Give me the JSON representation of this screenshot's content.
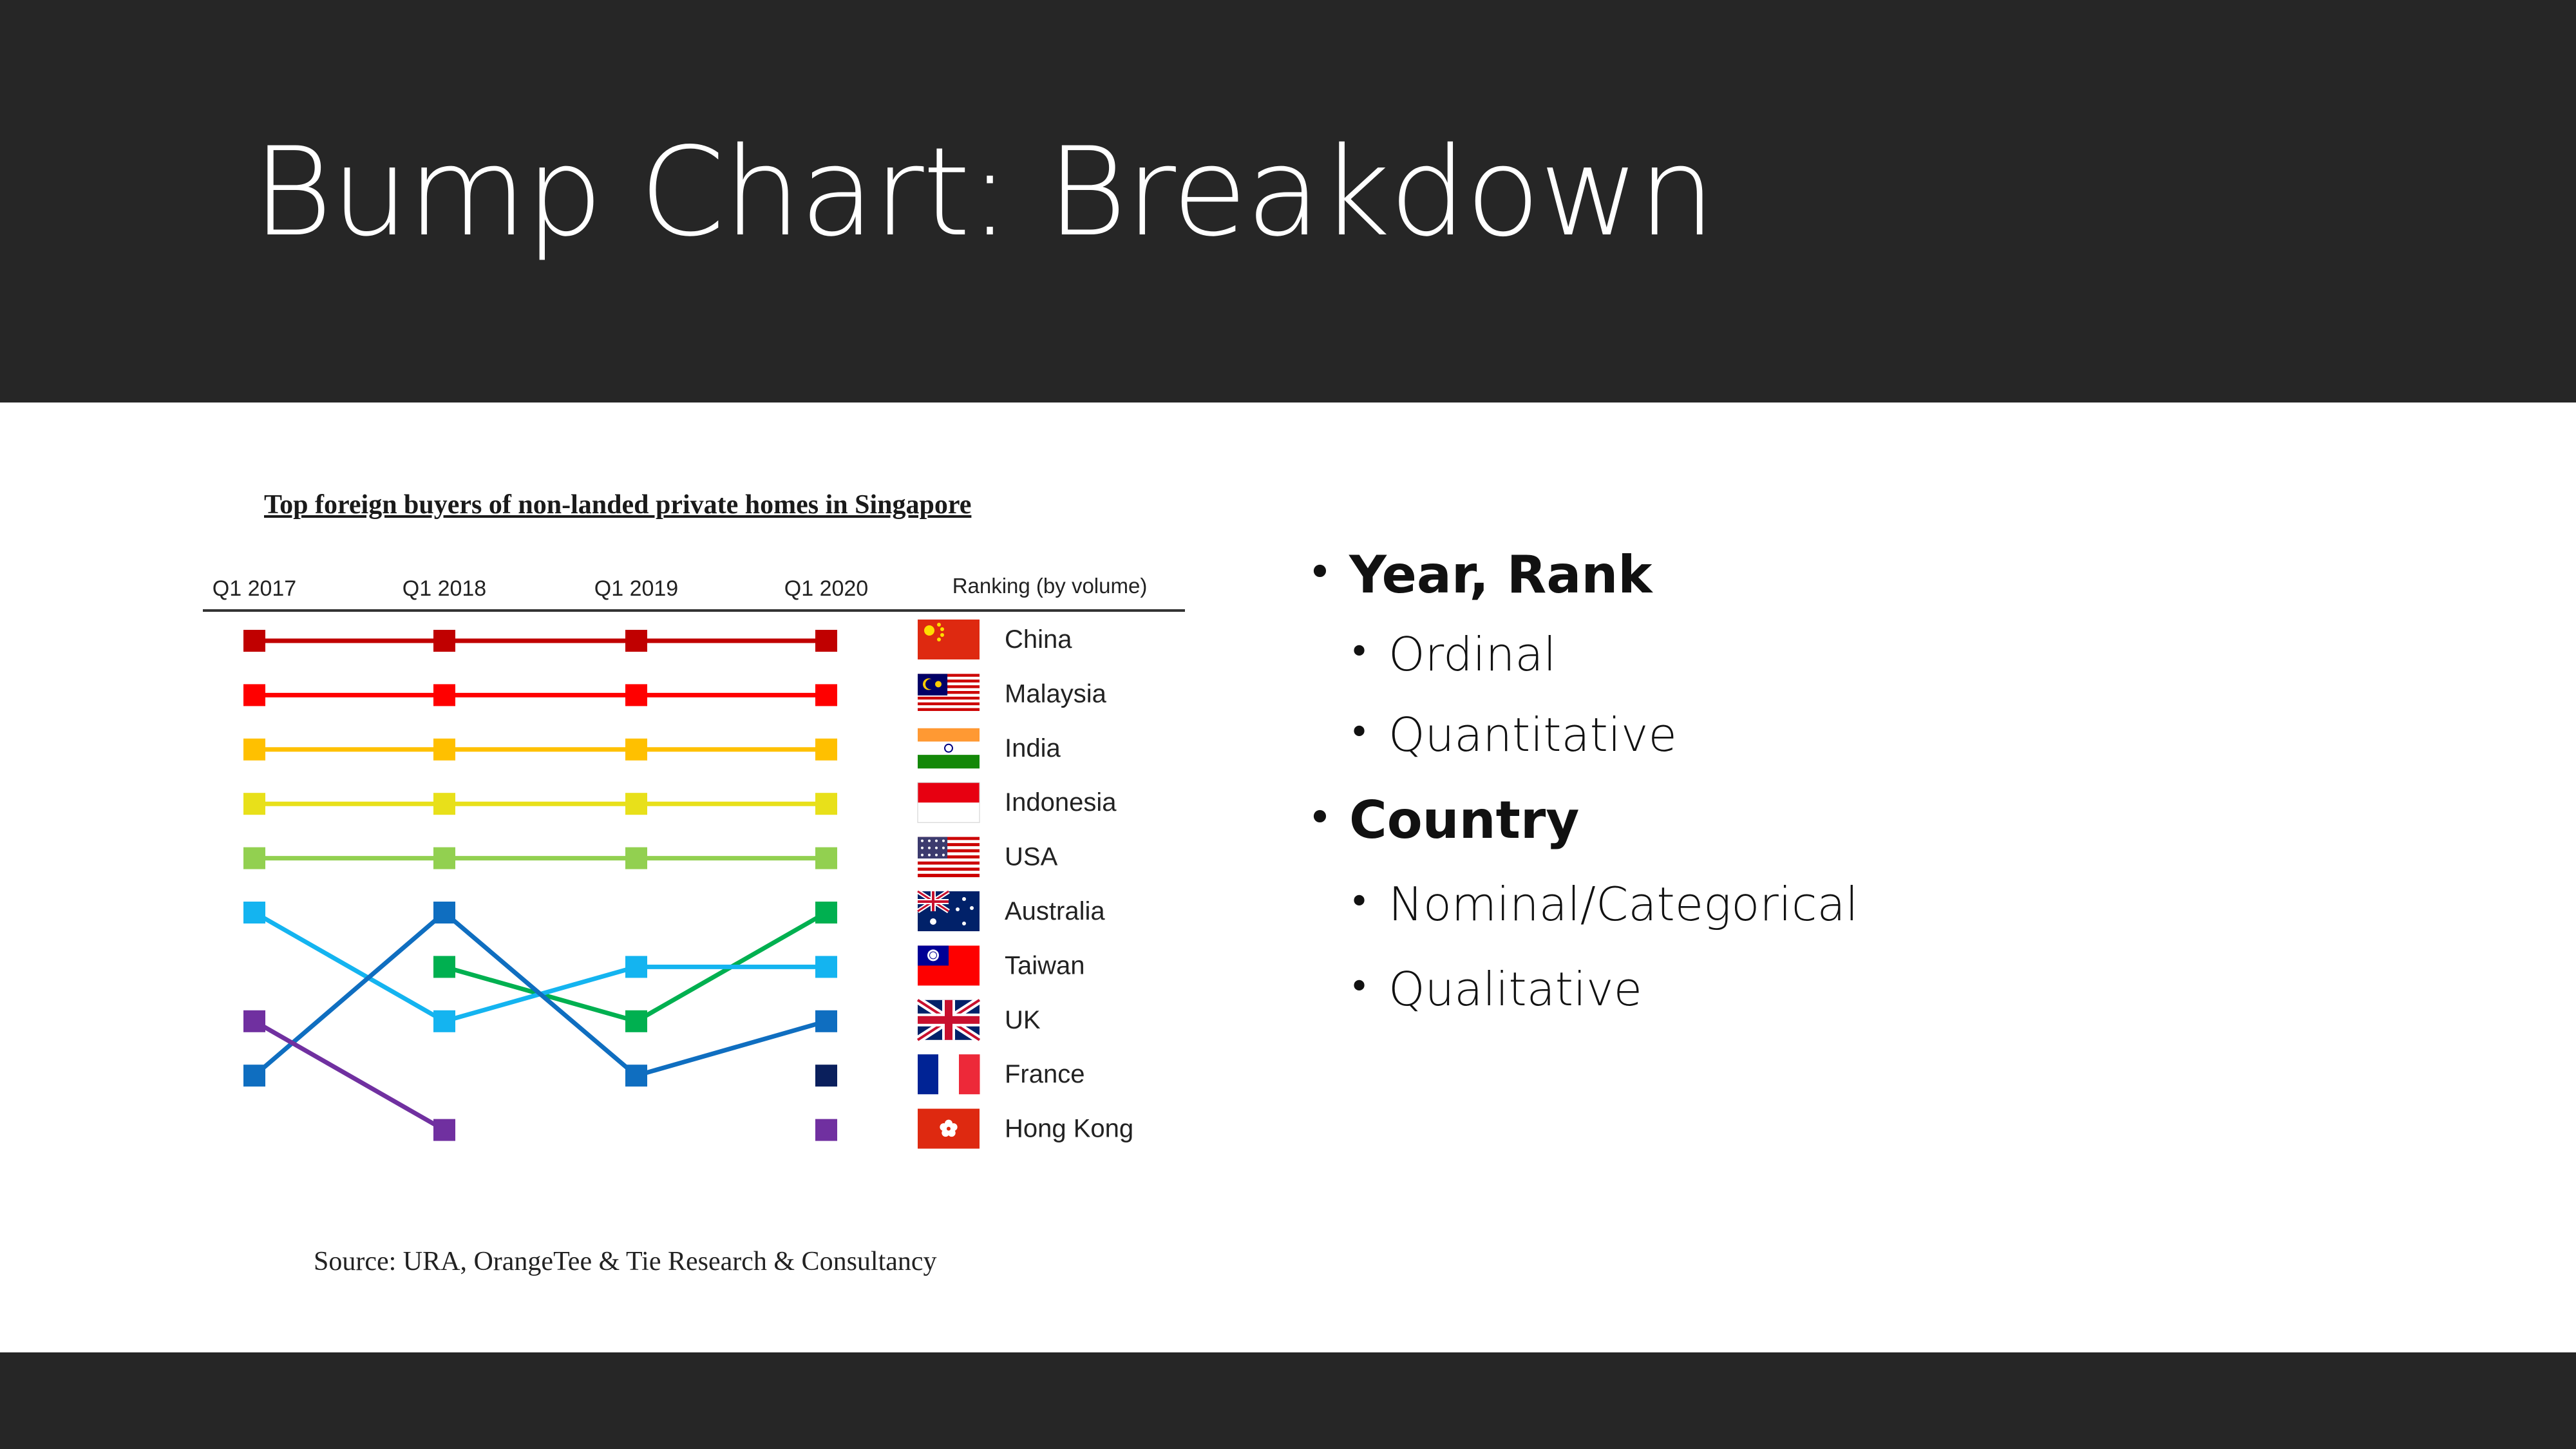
{
  "slide": {
    "title": "Bump Chart: Breakdown"
  },
  "bullets": {
    "year_rank": "Year, Rank",
    "ordinal": "Ordinal",
    "quantitative": "Quantitative",
    "country": "Country",
    "nominal": "Nominal/Categorical",
    "qualitative": "Qualitative"
  },
  "chart_data": {
    "type": "line",
    "title": "Top foreign buyers of non-landed private homes in Singapore",
    "source": "Source: URA, OrangeTee & Tie Research & Consultancy",
    "legend_title": "Ranking (by volume)",
    "x": [
      "Q1 2017",
      "Q1 2018",
      "Q1 2019",
      "Q1 2020"
    ],
    "y_axis": "rank (1 at top, 10 at bottom)",
    "ylim": [
      1,
      10
    ],
    "legend": [
      "China",
      "Malaysia",
      "India",
      "Indonesia",
      "USA",
      "Australia",
      "Taiwan",
      "UK",
      "France",
      "Hong Kong"
    ],
    "series": [
      {
        "name": "China",
        "color": "#C00000",
        "values": [
          1,
          1,
          1,
          1
        ]
      },
      {
        "name": "Malaysia",
        "color": "#FF0000",
        "values": [
          2,
          2,
          2,
          2
        ]
      },
      {
        "name": "India",
        "color": "#FFC000",
        "values": [
          3,
          3,
          3,
          3
        ]
      },
      {
        "name": "Indonesia",
        "color": "#E8E01A",
        "values": [
          4,
          4,
          4,
          4
        ]
      },
      {
        "name": "USA",
        "color": "#92D050",
        "values": [
          5,
          5,
          5,
          5
        ]
      },
      {
        "name": "Australia",
        "color": "#00B050",
        "values": [
          null,
          7,
          8,
          6
        ]
      },
      {
        "name": "Taiwan",
        "color": "#14B4F0",
        "values": [
          6,
          8,
          7,
          7
        ]
      },
      {
        "name": "UK",
        "color": "#0F6EC0",
        "values": [
          9,
          6,
          9,
          8
        ]
      },
      {
        "name": "France",
        "color": "#0A1F5C",
        "values": [
          null,
          null,
          null,
          9
        ]
      },
      {
        "name": "Hong Kong",
        "color": "#7030A0",
        "values": [
          8,
          10,
          null,
          10
        ]
      }
    ],
    "grid": false,
    "legend_position": "right"
  }
}
